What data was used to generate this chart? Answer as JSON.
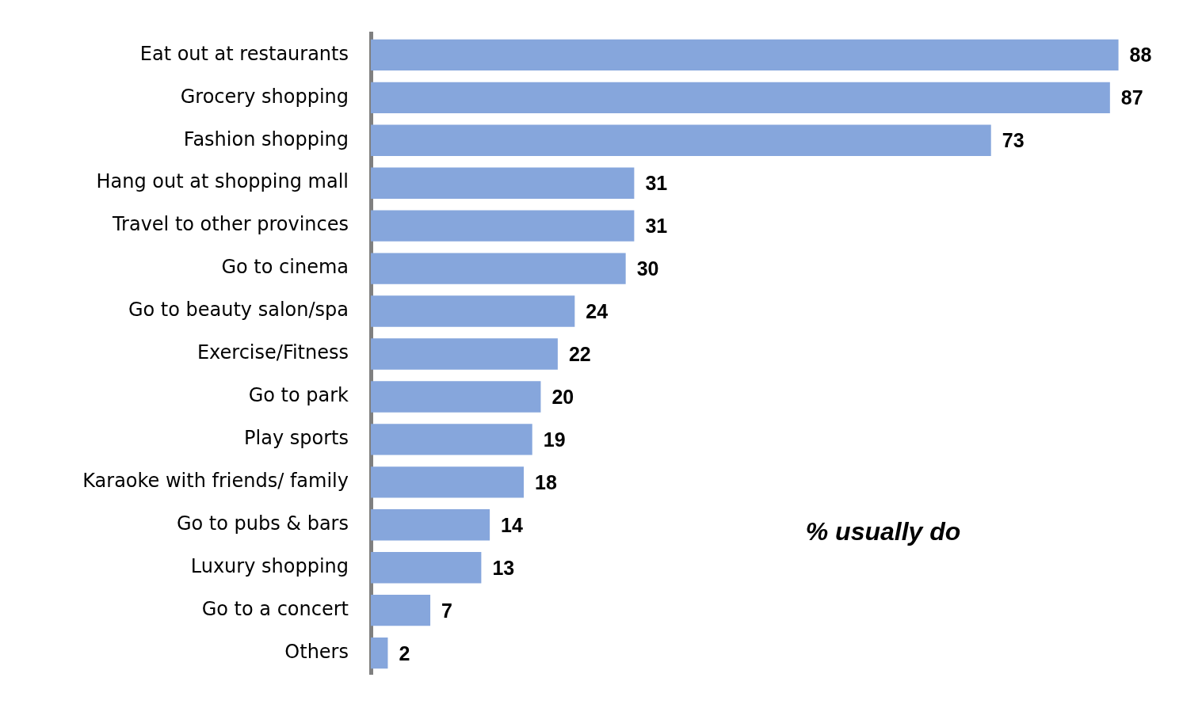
{
  "chart_data": {
    "type": "bar",
    "orientation": "horizontal",
    "categories": [
      "Eat out at restaurants",
      "Grocery shopping",
      "Fashion shopping",
      "Hang out at shopping mall",
      "Travel to other provinces",
      "Go to cinema",
      "Go to beauty salon/spa",
      "Exercise/Fitness",
      "Go to park",
      "Play sports",
      "Karaoke with friends/ family",
      "Go to pubs & bars",
      "Luxury shopping",
      "Go to a concert",
      "Others"
    ],
    "values": [
      88,
      87,
      73,
      31,
      31,
      30,
      24,
      22,
      20,
      19,
      18,
      14,
      13,
      7,
      2
    ],
    "color": "#86a6dc",
    "data_labels": true,
    "legend": false,
    "annotations": [
      "% usually do"
    ]
  }
}
